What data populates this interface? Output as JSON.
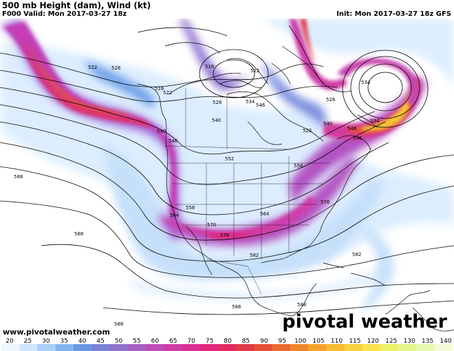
{
  "header": {
    "title": "500 mb Height (dam), Wind (kt)",
    "valid": "F000 Valid: Mon 2017-03-27 18z",
    "init": "Init: Mon 2017-03-27 18z GFS"
  },
  "footer": {
    "website": "www.pivotalweather.com",
    "brand": "pivotal weather"
  },
  "height_labels": [
    "522",
    "528",
    "516",
    "522",
    "540",
    "546",
    "552",
    "558",
    "564",
    "570",
    "576",
    "582",
    "588",
    "528",
    "534",
    "546",
    "558",
    "516",
    "522",
    "534",
    "540",
    "546",
    "528",
    "564",
    "576",
    "582",
    "588",
    "588",
    "588",
    "588",
    "540",
    "546",
    "522",
    "534"
  ],
  "colorbar": {
    "labels": [
      "20",
      "25",
      "30",
      "35",
      "40",
      "45",
      "50",
      "55",
      "60",
      "65",
      "70",
      "75",
      "80",
      "85",
      "90",
      "95",
      "100",
      "105",
      "110",
      "115",
      "120",
      "125",
      "130",
      "135",
      "140"
    ],
    "colors": [
      "#eef6ff",
      "#cfe6ff",
      "#a9d0f7",
      "#83b5ef",
      "#6a98e2",
      "#7b82d8",
      "#9173cd",
      "#a862c4",
      "#bd4eb8",
      "#cf3ca8",
      "#db2f93",
      "#e2287a",
      "#e42a5f",
      "#e33948",
      "#e65038",
      "#ec6a30",
      "#f2862b",
      "#f6a22c",
      "#f8bb33",
      "#f9d03d",
      "#f8e34d",
      "#eef06a",
      "#e5f58b",
      "#e8f8b0",
      "#f2fbd6"
    ],
    "unit": "kt"
  }
}
